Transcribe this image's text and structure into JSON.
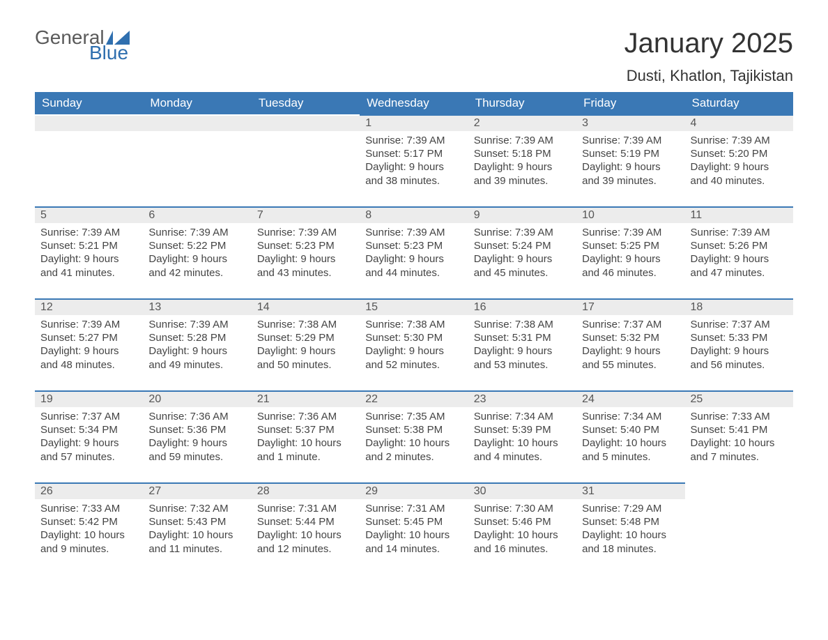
{
  "logo": {
    "word1": "General",
    "word2": "Blue"
  },
  "title": "January 2025",
  "location": "Dusti, Khatlon, Tajikistan",
  "colors": {
    "header_bg": "#3a78b5",
    "header_text": "#ffffff",
    "date_bg": "#ececec",
    "body_text": "#444444",
    "rule": "#3a78b5"
  },
  "weekdays": [
    "Sunday",
    "Monday",
    "Tuesday",
    "Wednesday",
    "Thursday",
    "Friday",
    "Saturday"
  ],
  "weeks": [
    [
      null,
      null,
      null,
      {
        "n": "1",
        "sunrise": "7:39 AM",
        "sunset": "5:17 PM",
        "daylight": "9 hours and 38 minutes."
      },
      {
        "n": "2",
        "sunrise": "7:39 AM",
        "sunset": "5:18 PM",
        "daylight": "9 hours and 39 minutes."
      },
      {
        "n": "3",
        "sunrise": "7:39 AM",
        "sunset": "5:19 PM",
        "daylight": "9 hours and 39 minutes."
      },
      {
        "n": "4",
        "sunrise": "7:39 AM",
        "sunset": "5:20 PM",
        "daylight": "9 hours and 40 minutes."
      }
    ],
    [
      {
        "n": "5",
        "sunrise": "7:39 AM",
        "sunset": "5:21 PM",
        "daylight": "9 hours and 41 minutes."
      },
      {
        "n": "6",
        "sunrise": "7:39 AM",
        "sunset": "5:22 PM",
        "daylight": "9 hours and 42 minutes."
      },
      {
        "n": "7",
        "sunrise": "7:39 AM",
        "sunset": "5:23 PM",
        "daylight": "9 hours and 43 minutes."
      },
      {
        "n": "8",
        "sunrise": "7:39 AM",
        "sunset": "5:23 PM",
        "daylight": "9 hours and 44 minutes."
      },
      {
        "n": "9",
        "sunrise": "7:39 AM",
        "sunset": "5:24 PM",
        "daylight": "9 hours and 45 minutes."
      },
      {
        "n": "10",
        "sunrise": "7:39 AM",
        "sunset": "5:25 PM",
        "daylight": "9 hours and 46 minutes."
      },
      {
        "n": "11",
        "sunrise": "7:39 AM",
        "sunset": "5:26 PM",
        "daylight": "9 hours and 47 minutes."
      }
    ],
    [
      {
        "n": "12",
        "sunrise": "7:39 AM",
        "sunset": "5:27 PM",
        "daylight": "9 hours and 48 minutes."
      },
      {
        "n": "13",
        "sunrise": "7:39 AM",
        "sunset": "5:28 PM",
        "daylight": "9 hours and 49 minutes."
      },
      {
        "n": "14",
        "sunrise": "7:38 AM",
        "sunset": "5:29 PM",
        "daylight": "9 hours and 50 minutes."
      },
      {
        "n": "15",
        "sunrise": "7:38 AM",
        "sunset": "5:30 PM",
        "daylight": "9 hours and 52 minutes."
      },
      {
        "n": "16",
        "sunrise": "7:38 AM",
        "sunset": "5:31 PM",
        "daylight": "9 hours and 53 minutes."
      },
      {
        "n": "17",
        "sunrise": "7:37 AM",
        "sunset": "5:32 PM",
        "daylight": "9 hours and 55 minutes."
      },
      {
        "n": "18",
        "sunrise": "7:37 AM",
        "sunset": "5:33 PM",
        "daylight": "9 hours and 56 minutes."
      }
    ],
    [
      {
        "n": "19",
        "sunrise": "7:37 AM",
        "sunset": "5:34 PM",
        "daylight": "9 hours and 57 minutes."
      },
      {
        "n": "20",
        "sunrise": "7:36 AM",
        "sunset": "5:36 PM",
        "daylight": "9 hours and 59 minutes."
      },
      {
        "n": "21",
        "sunrise": "7:36 AM",
        "sunset": "5:37 PM",
        "daylight": "10 hours and 1 minute."
      },
      {
        "n": "22",
        "sunrise": "7:35 AM",
        "sunset": "5:38 PM",
        "daylight": "10 hours and 2 minutes."
      },
      {
        "n": "23",
        "sunrise": "7:34 AM",
        "sunset": "5:39 PM",
        "daylight": "10 hours and 4 minutes."
      },
      {
        "n": "24",
        "sunrise": "7:34 AM",
        "sunset": "5:40 PM",
        "daylight": "10 hours and 5 minutes."
      },
      {
        "n": "25",
        "sunrise": "7:33 AM",
        "sunset": "5:41 PM",
        "daylight": "10 hours and 7 minutes."
      }
    ],
    [
      {
        "n": "26",
        "sunrise": "7:33 AM",
        "sunset": "5:42 PM",
        "daylight": "10 hours and 9 minutes."
      },
      {
        "n": "27",
        "sunrise": "7:32 AM",
        "sunset": "5:43 PM",
        "daylight": "10 hours and 11 minutes."
      },
      {
        "n": "28",
        "sunrise": "7:31 AM",
        "sunset": "5:44 PM",
        "daylight": "10 hours and 12 minutes."
      },
      {
        "n": "29",
        "sunrise": "7:31 AM",
        "sunset": "5:45 PM",
        "daylight": "10 hours and 14 minutes."
      },
      {
        "n": "30",
        "sunrise": "7:30 AM",
        "sunset": "5:46 PM",
        "daylight": "10 hours and 16 minutes."
      },
      {
        "n": "31",
        "sunrise": "7:29 AM",
        "sunset": "5:48 PM",
        "daylight": "10 hours and 18 minutes."
      },
      null
    ]
  ],
  "labels": {
    "sunrise": "Sunrise: ",
    "sunset": "Sunset: ",
    "daylight": "Daylight: "
  }
}
